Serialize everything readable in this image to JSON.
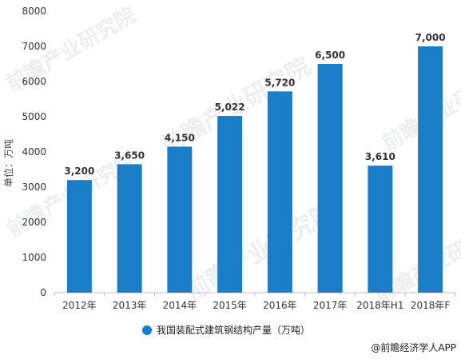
{
  "chart_data": {
    "type": "bar",
    "categories": [
      "2012年",
      "2013年",
      "2014年",
      "2015年",
      "2016年",
      "2017年",
      "2018年H1",
      "2018年F"
    ],
    "series": [
      {
        "name": "我国装配式建筑钢结构产量（万吨）",
        "values": [
          3200,
          3650,
          4150,
          5022,
          5720,
          6500,
          3610,
          7000
        ],
        "value_labels": [
          "3,200",
          "3,650",
          "4,150",
          "5,022",
          "5,720",
          "6,500",
          "3,610",
          "7,000"
        ],
        "color": "#1a7dc8"
      }
    ],
    "ylabel": "单位：万吨",
    "ylim": [
      0,
      8000
    ],
    "yticks": [
      0,
      1000,
      2000,
      3000,
      4000,
      5000,
      6000,
      7000,
      8000
    ],
    "grid": false,
    "legend_position": "bottom"
  },
  "source": "@前瞻经济学人APP",
  "watermark": "前瞻产业研究院"
}
